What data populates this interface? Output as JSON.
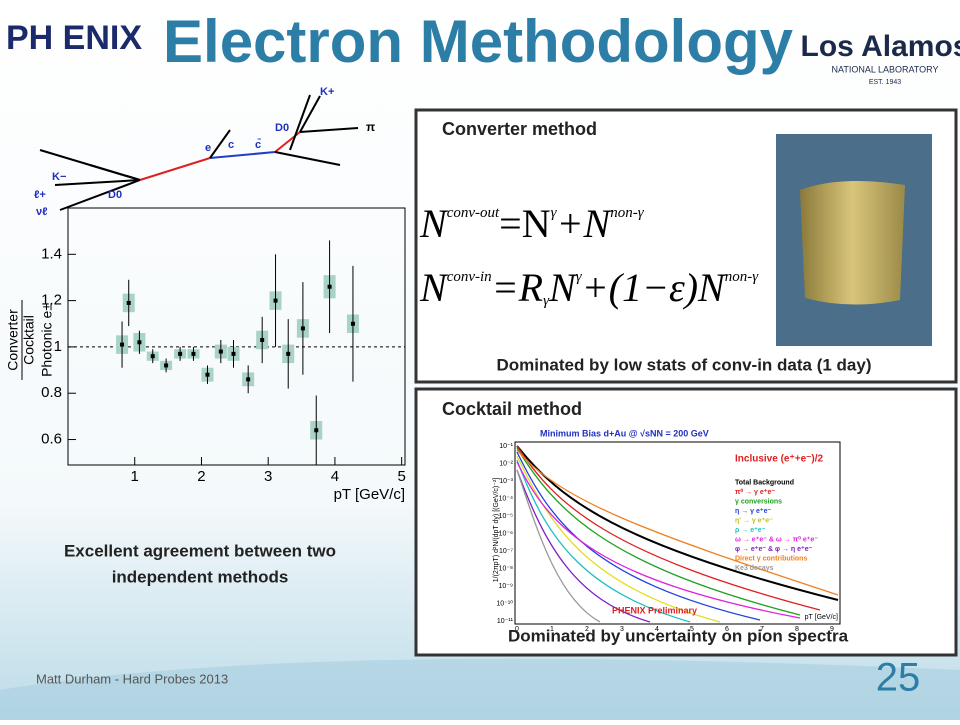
{
  "header": {
    "title": "Electron Methodology",
    "left_logo": "PH ENIX",
    "right_logo": "Los Alamos",
    "right_logo_sub": "NATIONAL LABORATORY",
    "right_logo_est": "EST. 1943"
  },
  "diagram": {
    "labels": [
      "K+",
      "π",
      "D0",
      "e",
      "c",
      "c̄",
      "K−",
      "ℓ+",
      "D0",
      "νℓ"
    ]
  },
  "chart_data": {
    "type": "scatter",
    "y_label_top": "Converter",
    "y_label_bottom": "Cocktail",
    "y_label_right": "Photonic e±",
    "x_label": "pT [GeV/c]",
    "x": [
      0.81,
      0.91,
      1.07,
      1.27,
      1.47,
      1.68,
      1.88,
      2.09,
      2.29,
      2.48,
      2.7,
      2.91,
      3.11,
      3.3,
      3.52,
      3.72,
      3.92,
      4.27
    ],
    "values": [
      1.01,
      1.19,
      1.02,
      0.96,
      0.92,
      0.97,
      0.97,
      0.88,
      0.98,
      0.97,
      0.86,
      1.03,
      1.2,
      0.97,
      1.08,
      0.64,
      1.26,
      1.1
    ],
    "errors": [
      0.1,
      0.1,
      0.05,
      0.03,
      0.03,
      0.03,
      0.03,
      0.04,
      0.05,
      0.06,
      0.06,
      0.1,
      0.2,
      0.15,
      0.2,
      0.15,
      0.2,
      0.25
    ],
    "syst": [
      0.04,
      0.04,
      0.04,
      0.02,
      0.02,
      0.02,
      0.02,
      0.03,
      0.03,
      0.03,
      0.03,
      0.04,
      0.04,
      0.04,
      0.04,
      0.04,
      0.05,
      0.04
    ],
    "color": "#000000",
    "syst_color": "#a9d3c6",
    "xlim": [
      0,
      5.05
    ],
    "ylim": [
      0.49,
      1.6
    ],
    "xticks": [
      1,
      2,
      3,
      4,
      5
    ],
    "yticks": [
      0.6,
      0.8,
      1,
      1.2,
      1.4
    ],
    "reference": 1
  },
  "left_text": [
    "Excellent agreement between two",
    "independent methods"
  ],
  "converter": {
    "heading": "Converter method",
    "eq1": [
      "N",
      "conv-out",
      "=N",
      "γ",
      "+N",
      "non-γ"
    ],
    "eq2": [
      "N",
      "conv-in",
      "=R",
      "γ",
      "N",
      "γ",
      "+(1−ε)N",
      "non-γ"
    ],
    "caption": "Dominated by low stats of conv-in data (1 day)"
  },
  "cocktail": {
    "heading": "Cocktail method",
    "plot_title": "Minimum Bias d+Au @ √sNN = 200 GeV",
    "legend": [
      "Inclusive (e⁺+e⁻)/2",
      "Total Background",
      "π⁰ → γ e⁺e⁻",
      "γ conversions",
      "η → γ e⁺e⁻",
      "η' → γ e⁺e⁻",
      "ρ → e⁺e⁻",
      "ω → e⁺e⁻ & ω → π⁰ e⁺e⁻",
      "φ → e⁺e⁻ & φ → η e⁺e⁻",
      "Direct γ contributions",
      "Ke3 decays"
    ],
    "yticks": [
      "10⁻¹",
      "10⁻²",
      "10⁻³",
      "10⁻⁴",
      "10⁻⁵",
      "10⁻⁶",
      "10⁻⁷",
      "10⁻⁸",
      "10⁻⁹",
      "10⁻¹⁰",
      "10⁻¹¹"
    ],
    "xticks": [
      "0",
      "1",
      "2",
      "3",
      "4",
      "5",
      "6",
      "7",
      "8",
      "9"
    ],
    "x_label": "pT [GeV/c]",
    "y_label": "1/(2πpT) d²N/(dpT dy) [(GeV/c)⁻²]",
    "preliminary": "PHENIX Preliminary",
    "caption": "Dominated by uncertainty on pion spectra"
  },
  "footer": {
    "author": "Matt Durham - Hard Probes 2013",
    "page": "25"
  }
}
